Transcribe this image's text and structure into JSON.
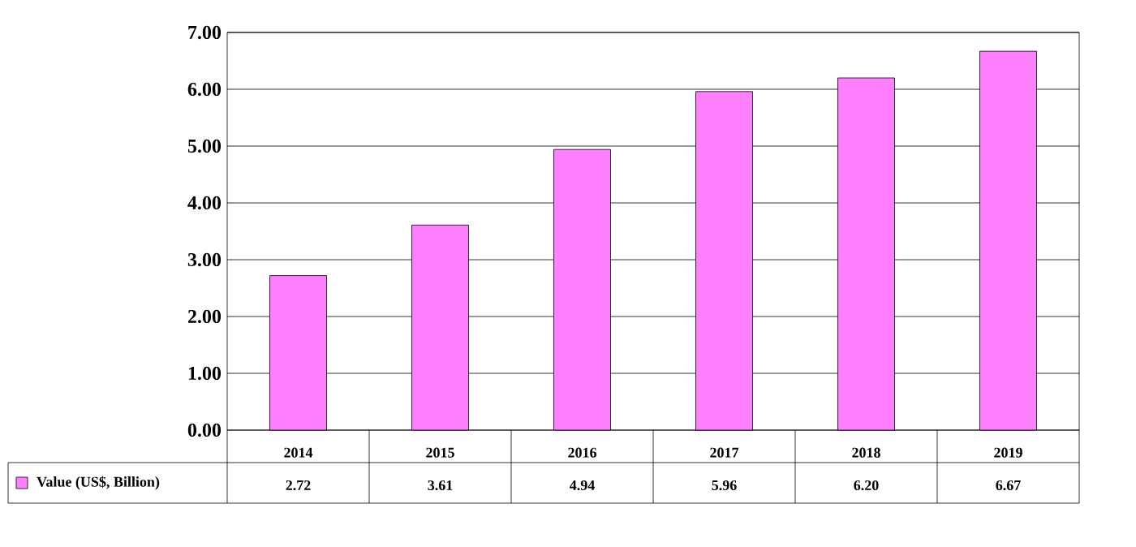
{
  "chart_data": {
    "type": "bar",
    "categories": [
      "2014",
      "2015",
      "2016",
      "2017",
      "2018",
      "2019"
    ],
    "series": [
      {
        "name": "Value (US$, Billion)",
        "color": "#ff80ff",
        "values": [
          2.72,
          3.61,
          4.94,
          5.96,
          6.2,
          6.67
        ],
        "value_labels": [
          "2.72",
          "3.61",
          "4.94",
          "5.96",
          "6.20",
          "6.67"
        ]
      }
    ],
    "ylim": [
      0,
      7
    ],
    "yticks": [
      {
        "value": 0,
        "label": "0.00"
      },
      {
        "value": 1,
        "label": "1.00"
      },
      {
        "value": 2,
        "label": "2.00"
      },
      {
        "value": 3,
        "label": "3.00"
      },
      {
        "value": 4,
        "label": "4.00"
      },
      {
        "value": 5,
        "label": "5.00"
      },
      {
        "value": 6,
        "label": "6.00"
      },
      {
        "value": 7,
        "label": "7.00"
      }
    ],
    "grid": "y",
    "legend": "bottom left"
  }
}
